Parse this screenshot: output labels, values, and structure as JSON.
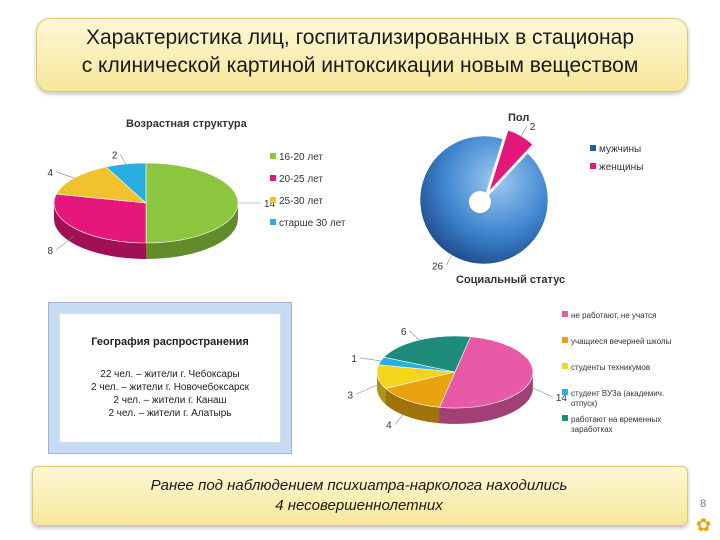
{
  "slide": {
    "title_line1": "Характеристика лиц, госпитализированных в стационар",
    "title_line2": "с клинической картиной интоксикации новым веществом",
    "page_number": "8",
    "footer_icon": "gear-icon"
  },
  "chart_data": [
    {
      "type": "pie",
      "title": "Возрастная структура",
      "categories": [
        "16-20 лет",
        "20-25 лет",
        "25-30 лет",
        "старше 30 лет"
      ],
      "values": [
        14,
        8,
        4,
        2
      ],
      "colors": [
        "#8cc63f",
        "#e6177a",
        "#f2c12e",
        "#2aaede"
      ],
      "legend": "right"
    },
    {
      "type": "pie",
      "title": "Пол",
      "categories": [
        "мужчины",
        "женщины"
      ],
      "values": [
        26,
        2
      ],
      "colors": [
        "#1f5fa8",
        "#e6177a"
      ],
      "legend": "right"
    },
    {
      "type": "pie",
      "title": "Социальный статус",
      "categories": [
        "не работают, не учатся",
        "учащиеся вечерней школы",
        "студенты техникумов",
        "студент ВУЗа (академич. отпуск)",
        "работают на временных заработках"
      ],
      "values": [
        14,
        4,
        3,
        1,
        6
      ],
      "colors": [
        "#e85aa8",
        "#e8a30e",
        "#f4d51c",
        "#2aaede",
        "#1d8c7a"
      ],
      "legend": "right"
    }
  ],
  "geography": {
    "title": "География распространения",
    "lines": [
      "22 чел. – жители г. Чебоксары",
      "2 чел. – жители г. Новочебоксарск",
      "2 чел. – жители г. Канаш",
      "2 чел. – жители г. Алатырь"
    ]
  },
  "note": {
    "line1": "Ранее под наблюдением психиатра-нарколога находились",
    "line2": "4 несовершеннолетних"
  }
}
